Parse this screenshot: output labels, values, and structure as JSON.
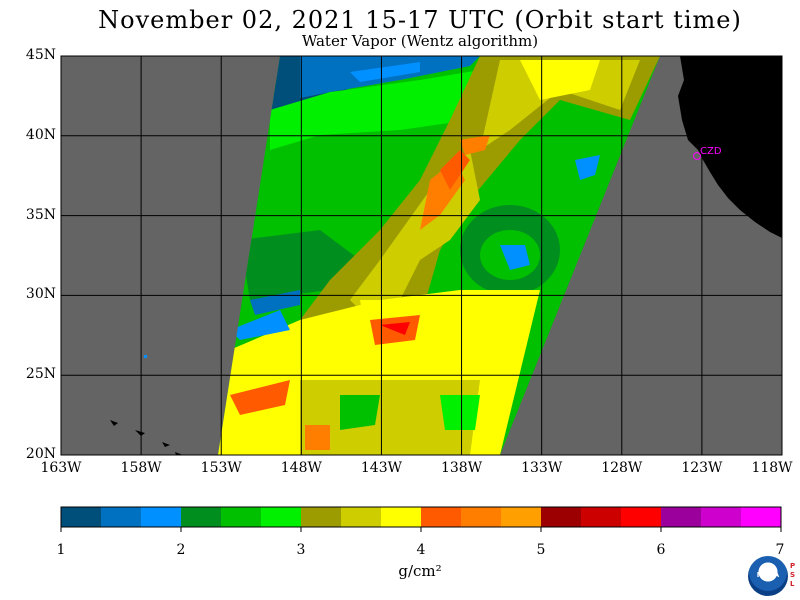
{
  "title": "November 02, 2021  15-17 UTC  (Orbit start time)",
  "subtitle": "Water Vapor (Wentz algorithm)",
  "lat_labels": [
    "45N",
    "40N",
    "35N",
    "30N",
    "25N",
    "20N"
  ],
  "lon_labels": [
    "163W",
    "158W",
    "153W",
    "148W",
    "143W",
    "138W",
    "133W",
    "128W",
    "123W",
    "118W"
  ],
  "station": "CZD",
  "colorbar": {
    "ticks": [
      "1",
      "2",
      "3",
      "4",
      "5",
      "6",
      "7"
    ],
    "units": "g/cm²",
    "colors": [
      "#004e7a",
      "#0070c0",
      "#0090ff",
      "#008f1e",
      "#00c000",
      "#00f000",
      "#9c9c00",
      "#cdcd00",
      "#ffff00",
      "#ff5a00",
      "#ff7e00",
      "#ffa000",
      "#9c0000",
      "#cd0000",
      "#ff0000",
      "#9c009c",
      "#cd00cd",
      "#ff00ff"
    ]
  },
  "map_colors": {
    "background": "#646464",
    "land": "#000000",
    "grid": "#000000"
  },
  "logo_text": "NOAA",
  "logo_side_text": "PSL"
}
